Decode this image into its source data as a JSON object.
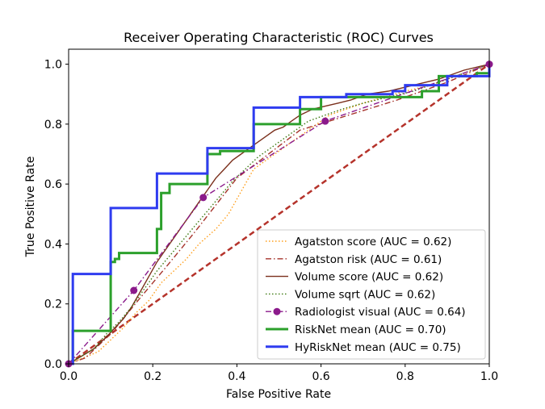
{
  "chart_data": {
    "type": "line",
    "title": "Receiver Operating Characteristic (ROC) Curves",
    "xlabel": "False Positive Rate",
    "ylabel": "True Positive Rate",
    "xlim": [
      0,
      1
    ],
    "ylim": [
      0,
      1.05
    ],
    "xticks": [
      "0.0",
      "0.2",
      "0.4",
      "0.6",
      "0.8",
      "1.0"
    ],
    "yticks": [
      "0.0",
      "0.2",
      "0.4",
      "0.6",
      "0.8",
      "1.0"
    ],
    "grid": false,
    "legend_position": "lower-right",
    "chance_line": {
      "x": [
        0,
        1
      ],
      "y": [
        0,
        1
      ],
      "color": "#b5332b",
      "style": "dashed"
    },
    "series": [
      {
        "name": "Agatston score (AUC = 0.62)",
        "color": "#ff9f1c",
        "style": "dotted",
        "x": [
          0,
          0.07,
          0.1,
          0.13,
          0.16,
          0.19,
          0.22,
          0.25,
          0.28,
          0.31,
          0.35,
          0.38,
          0.4,
          0.42,
          0.44,
          0.47,
          0.5,
          0.53,
          0.56,
          0.59,
          0.62,
          0.66,
          0.7,
          0.75,
          0.8,
          0.86,
          0.92,
          1.0
        ],
        "y": [
          0,
          0.04,
          0.08,
          0.12,
          0.17,
          0.21,
          0.27,
          0.31,
          0.35,
          0.4,
          0.45,
          0.5,
          0.55,
          0.6,
          0.65,
          0.68,
          0.71,
          0.74,
          0.77,
          0.8,
          0.83,
          0.85,
          0.87,
          0.89,
          0.91,
          0.93,
          0.96,
          1.0
        ]
      },
      {
        "name": "Agatston risk (AUC = 0.61)",
        "color": "#a6332b",
        "style": "dashdot",
        "x": [
          0,
          0.04,
          0.1,
          0.17,
          0.23,
          0.3,
          0.4,
          0.55,
          0.62,
          0.78,
          0.9,
          1.0
        ],
        "y": [
          0,
          0.02,
          0.1,
          0.22,
          0.32,
          0.44,
          0.62,
          0.78,
          0.81,
          0.88,
          0.94,
          1.0
        ]
      },
      {
        "name": "Volume score (AUC = 0.62)",
        "color": "#7a2f1b",
        "style": "solid",
        "x": [
          0,
          0.06,
          0.09,
          0.11,
          0.13,
          0.15,
          0.17,
          0.19,
          0.21,
          0.23,
          0.25,
          0.27,
          0.29,
          0.31,
          0.33,
          0.35,
          0.37,
          0.39,
          0.41,
          0.43,
          0.45,
          0.47,
          0.49,
          0.51,
          0.53,
          0.55,
          0.58,
          0.61,
          0.64,
          0.67,
          0.71,
          0.76,
          0.82,
          0.88,
          0.94,
          1.0
        ],
        "y": [
          0,
          0.05,
          0.09,
          0.12,
          0.15,
          0.19,
          0.24,
          0.29,
          0.34,
          0.38,
          0.42,
          0.46,
          0.5,
          0.54,
          0.58,
          0.62,
          0.65,
          0.68,
          0.7,
          0.72,
          0.74,
          0.76,
          0.78,
          0.79,
          0.81,
          0.83,
          0.85,
          0.86,
          0.87,
          0.88,
          0.9,
          0.91,
          0.93,
          0.95,
          0.98,
          1.0
        ]
      },
      {
        "name": "Volume sqrt (AUC = 0.62)",
        "color": "#3d7a12",
        "style": "dotted",
        "x": [
          0,
          0.06,
          0.09,
          0.12,
          0.15,
          0.18,
          0.21,
          0.24,
          0.27,
          0.3,
          0.33,
          0.36,
          0.39,
          0.42,
          0.45,
          0.48,
          0.51,
          0.54,
          0.57,
          0.61,
          0.65,
          0.7,
          0.76,
          0.82,
          0.88,
          0.94,
          1.0
        ],
        "y": [
          0,
          0.05,
          0.1,
          0.14,
          0.19,
          0.25,
          0.31,
          0.36,
          0.41,
          0.46,
          0.51,
          0.56,
          0.61,
          0.65,
          0.69,
          0.72,
          0.75,
          0.78,
          0.81,
          0.83,
          0.85,
          0.87,
          0.89,
          0.91,
          0.94,
          0.97,
          1.0
        ]
      },
      {
        "name": "Radiologist visual (AUC = 0.64)",
        "color": "#8b1a8b",
        "style": "dashdot",
        "markers": true,
        "x": [
          0.0,
          0.155,
          0.32,
          0.61,
          1.0
        ],
        "y": [
          0.0,
          0.245,
          0.555,
          0.81,
          1.0
        ]
      },
      {
        "name": "RiskNet mean (AUC = 0.70)",
        "color": "#2ca02c",
        "style": "solid",
        "width": 3,
        "step": true,
        "x": [
          0,
          0.01,
          0.01,
          0.1,
          0.1,
          0.11,
          0.11,
          0.12,
          0.12,
          0.21,
          0.21,
          0.22,
          0.22,
          0.24,
          0.24,
          0.33,
          0.33,
          0.36,
          0.36,
          0.44,
          0.44,
          0.55,
          0.55,
          0.6,
          0.6,
          0.84,
          0.84,
          0.88,
          0.88,
          0.97,
          0.97,
          1.0,
          1.0
        ],
        "y": [
          0,
          0,
          0.11,
          0.11,
          0.34,
          0.34,
          0.35,
          0.35,
          0.37,
          0.37,
          0.45,
          0.45,
          0.57,
          0.57,
          0.6,
          0.6,
          0.7,
          0.7,
          0.71,
          0.71,
          0.8,
          0.8,
          0.85,
          0.85,
          0.89,
          0.89,
          0.91,
          0.91,
          0.96,
          0.96,
          0.97,
          0.97,
          1.0
        ]
      },
      {
        "name": "HyRiskNet mean (AUC = 0.75)",
        "color": "#2f3cf0",
        "style": "solid",
        "width": 3,
        "step": true,
        "x": [
          0,
          0.01,
          0.01,
          0.1,
          0.1,
          0.21,
          0.21,
          0.33,
          0.33,
          0.44,
          0.44,
          0.55,
          0.55,
          0.62,
          0.62,
          0.66,
          0.66,
          0.77,
          0.77,
          0.8,
          0.8,
          0.9,
          0.9,
          0.97,
          0.97,
          1.0,
          1.0
        ],
        "y": [
          0,
          0,
          0.3,
          0.3,
          0.52,
          0.52,
          0.635,
          0.635,
          0.72,
          0.72,
          0.855,
          0.855,
          0.89,
          0.89,
          0.89,
          0.89,
          0.9,
          0.9,
          0.91,
          0.91,
          0.93,
          0.93,
          0.96,
          0.96,
          0.96,
          0.96,
          1.0
        ]
      }
    ]
  }
}
